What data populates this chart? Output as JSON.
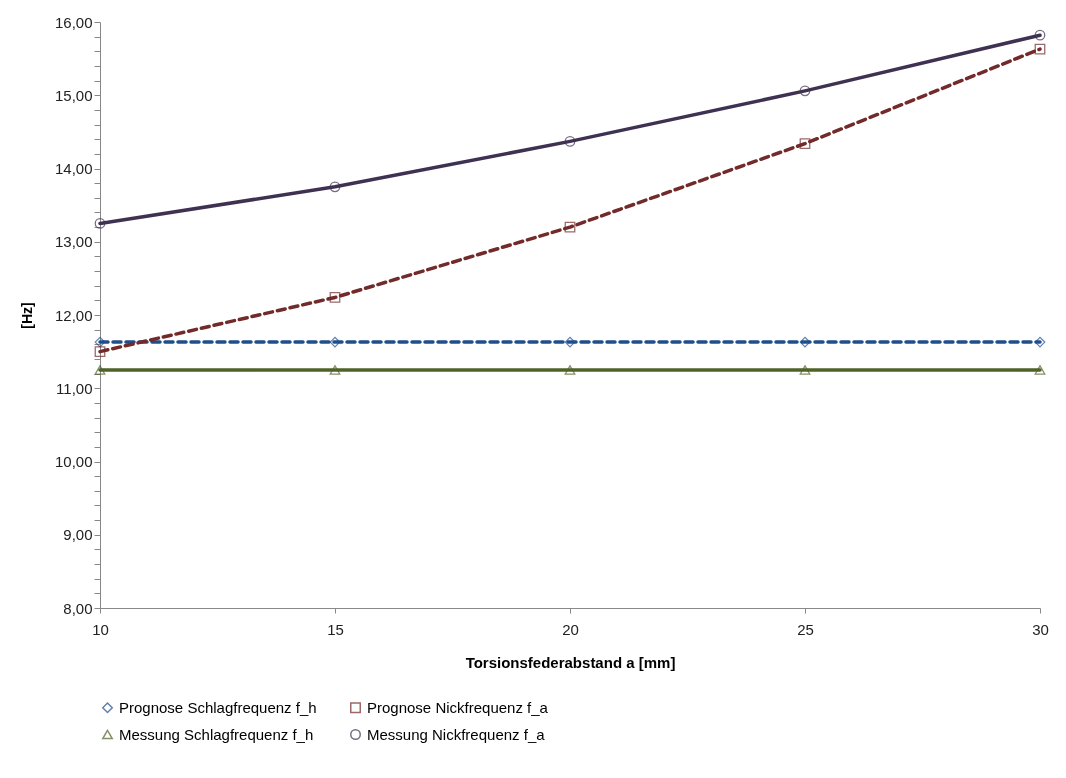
{
  "chart_data": {
    "type": "line",
    "xlabel": "Torsionsfederabstand a [mm]",
    "ylabel": "[Hz]",
    "x": [
      10,
      15,
      20,
      25,
      30
    ],
    "xlim": [
      10,
      30
    ],
    "xticks": [
      10,
      15,
      20,
      25,
      30
    ],
    "ylim": [
      8,
      16
    ],
    "yticks": [
      {
        "value": 8,
        "label": "8,00"
      },
      {
        "value": 8.2,
        "label": null
      },
      {
        "value": 8.4,
        "label": null
      },
      {
        "value": 8.6,
        "label": null
      },
      {
        "value": 8.8,
        "label": null
      },
      {
        "value": 9,
        "label": "9,00"
      },
      {
        "value": 9.2,
        "label": null
      },
      {
        "value": 9.4,
        "label": null
      },
      {
        "value": 9.6,
        "label": null
      },
      {
        "value": 9.8,
        "label": null
      },
      {
        "value": 10,
        "label": "10,00"
      },
      {
        "value": 10.2,
        "label": null
      },
      {
        "value": 10.4,
        "label": null
      },
      {
        "value": 10.6,
        "label": null
      },
      {
        "value": 10.8,
        "label": null
      },
      {
        "value": 11,
        "label": "11,00"
      },
      {
        "value": 11.2,
        "label": null
      },
      {
        "value": 11.4,
        "label": null
      },
      {
        "value": 11.6,
        "label": null
      },
      {
        "value": 11.8,
        "label": null
      },
      {
        "value": 12,
        "label": "12,00"
      },
      {
        "value": 12.2,
        "label": null
      },
      {
        "value": 12.4,
        "label": null
      },
      {
        "value": 12.6,
        "label": null
      },
      {
        "value": 12.8,
        "label": null
      },
      {
        "value": 13,
        "label": "13,00"
      },
      {
        "value": 13.2,
        "label": null
      },
      {
        "value": 13.4,
        "label": null
      },
      {
        "value": 13.6,
        "label": null
      },
      {
        "value": 13.8,
        "label": null
      },
      {
        "value": 14,
        "label": "14,00"
      },
      {
        "value": 14.2,
        "label": null
      },
      {
        "value": 14.4,
        "label": null
      },
      {
        "value": 14.6,
        "label": null
      },
      {
        "value": 14.8,
        "label": null
      },
      {
        "value": 15,
        "label": "15,00"
      },
      {
        "value": 15.2,
        "label": null
      },
      {
        "value": 15.4,
        "label": null
      },
      {
        "value": 15.6,
        "label": null
      },
      {
        "value": 15.8,
        "label": null
      },
      {
        "value": 16,
        "label": "16,00"
      }
    ],
    "grid": false,
    "legend": "bottom",
    "series": [
      {
        "name": "Prognose Schlagfrequenz f_h",
        "color": "#1f4e8c",
        "line_style": "dashed",
        "marker": "diamond",
        "values": [
          11.63,
          11.63,
          11.63,
          11.63,
          11.63
        ]
      },
      {
        "name": "Prognose Nickfrequenz f_a",
        "color": "#722a2a",
        "line_style": "dashed",
        "marker": "square",
        "values": [
          11.5,
          12.24,
          13.2,
          14.34,
          15.63
        ]
      },
      {
        "name": "Messung Schlagfrequenz f_h",
        "color": "#4f6228",
        "line_style": "solid",
        "marker": "triangle",
        "values": [
          11.25,
          11.25,
          11.25,
          11.25,
          11.25
        ]
      },
      {
        "name": "Messung Nickfrequenz f_a",
        "color": "#3f3151",
        "line_style": "solid",
        "marker": "circle",
        "values": [
          13.25,
          13.75,
          14.37,
          15.06,
          15.82
        ]
      }
    ]
  }
}
